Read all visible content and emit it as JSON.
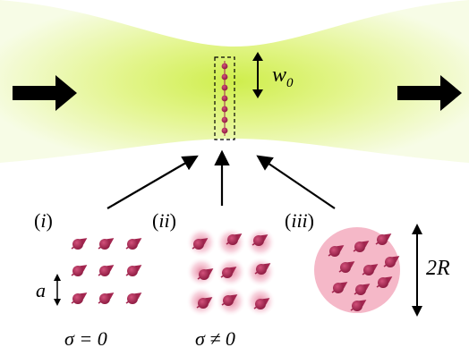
{
  "diagram": {
    "beam_waist_label": "w",
    "beam_waist_subscript": "0",
    "panel_labels": [
      {
        "open": "(",
        "roman": "i",
        "close": ")"
      },
      {
        "open": "(",
        "roman": "ii",
        "close": ")"
      },
      {
        "open": "(",
        "roman": "iii",
        "close": ")"
      }
    ],
    "spacing_label": "a",
    "size_label": "2R",
    "condition_labels": [
      "σ = 0",
      "σ ≠ 0"
    ]
  },
  "colors": {
    "beam_center": "#d4ef5a",
    "beam_edge": "#f2fad2",
    "atom": "#a3254f",
    "atom_shade": "#c9406e",
    "cloud": "#f4b3c4",
    "arrow": "#000000"
  }
}
